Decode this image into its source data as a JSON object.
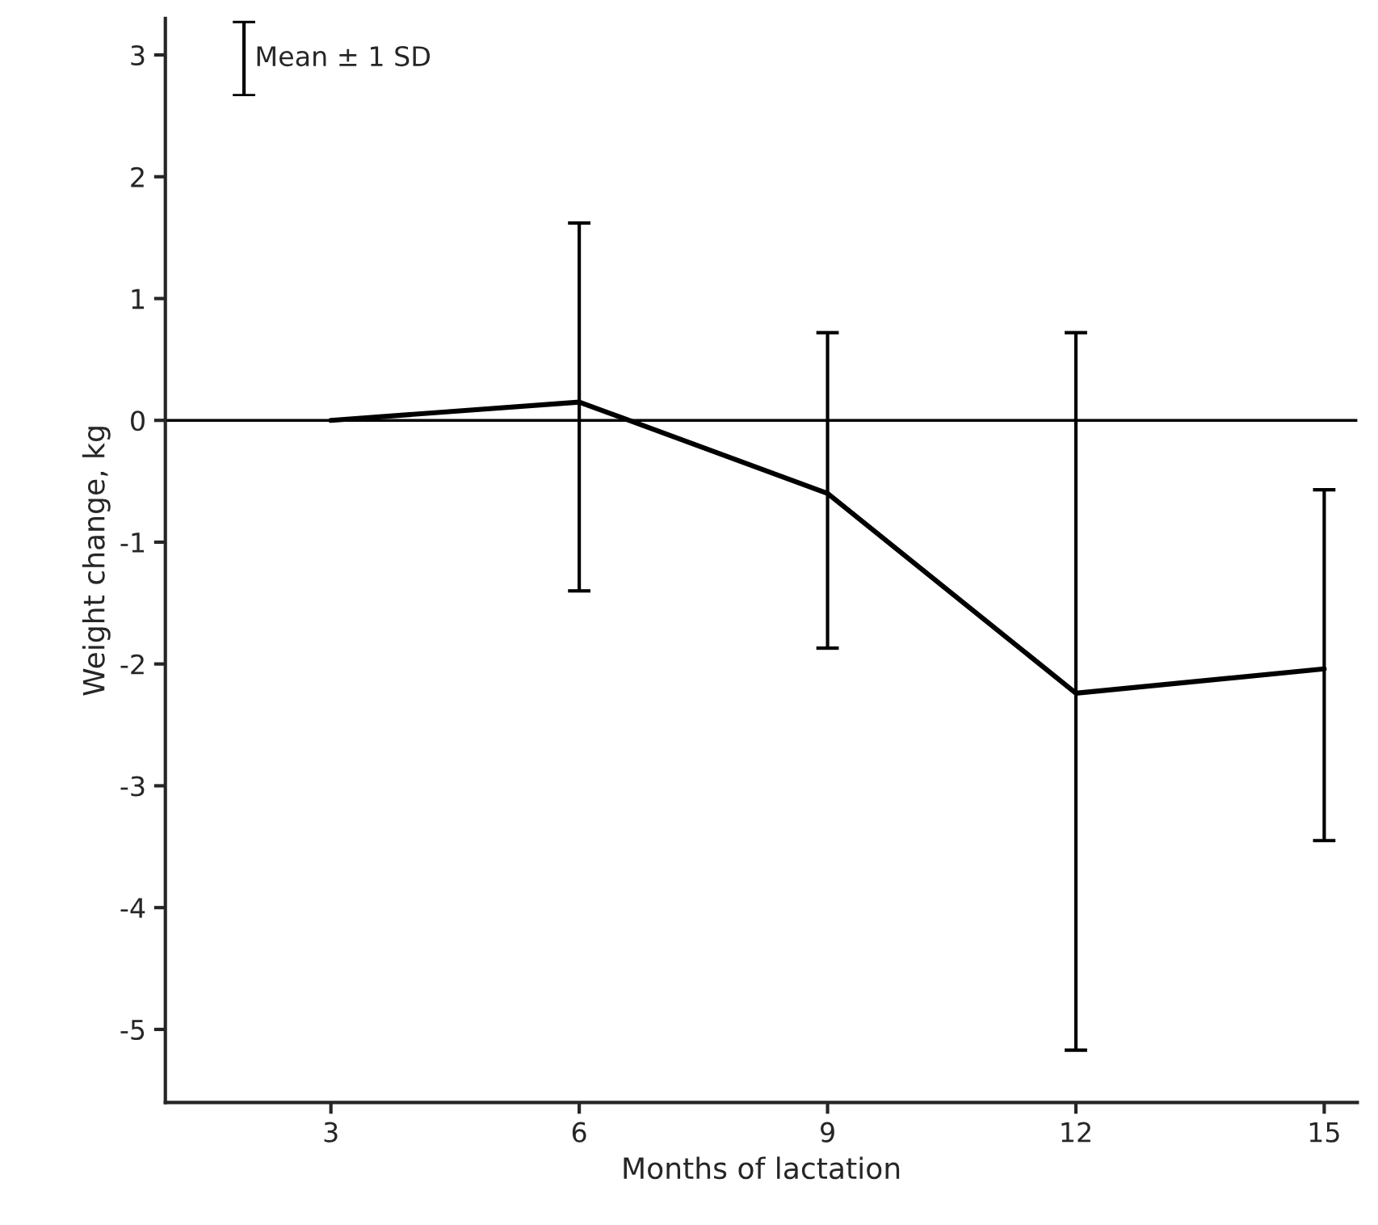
{
  "chart_data": {
    "type": "line",
    "xlabel": "Months of lactation",
    "ylabel": "Weight change, kg",
    "x": [
      3,
      6,
      9,
      12,
      15
    ],
    "series": [
      {
        "color": "#000000",
        "values": [
          0,
          0.15,
          -0.6,
          -2.24,
          -2.04
        ],
        "errors": [
          null,
          [
            -1.4,
            1.62
          ],
          [
            -1.87,
            0.72
          ],
          [
            -5.17,
            0.72
          ],
          [
            -3.45,
            -0.57
          ]
        ]
      }
    ],
    "xlim": [
      1,
      15.4
    ],
    "xticks": [
      3,
      6,
      9,
      12,
      15
    ],
    "ylim": [
      -5.6,
      3.3
    ],
    "yticks": [
      -5,
      -4,
      -3,
      -2,
      -1,
      0,
      1,
      2,
      3
    ],
    "ref_lines": [
      {
        "axis": "y",
        "value": 0,
        "color": "#000000"
      }
    ],
    "annotations": [
      "Mean ± 1 SD"
    ],
    "grid": false,
    "legend": false,
    "marker": "none",
    "line_style": "solid"
  }
}
